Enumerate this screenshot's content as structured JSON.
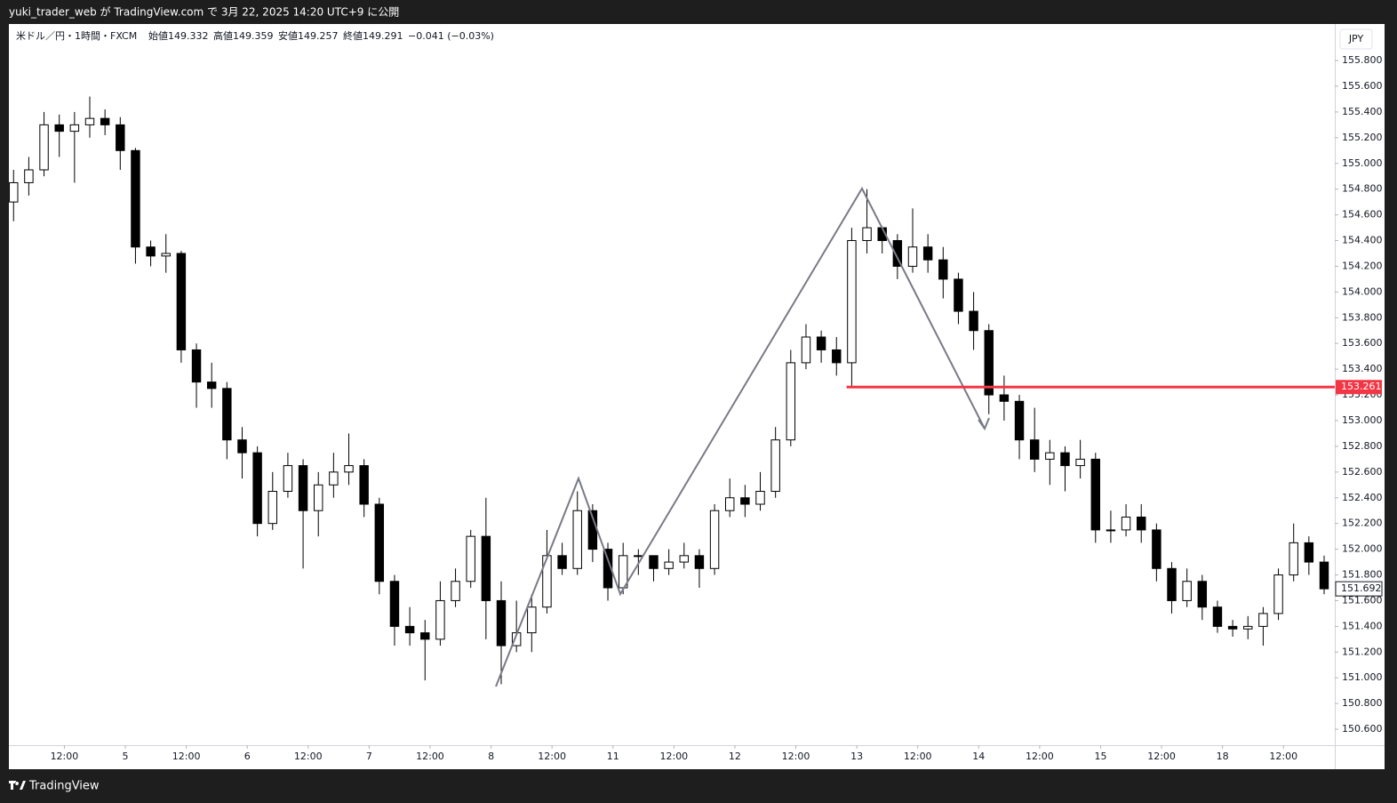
{
  "header": {
    "published": "yuki_trader_web が TradingView.com で 3月 22, 2025 14:20 UTC+9 に公開",
    "brand": "TradingView"
  },
  "chart_data": {
    "type": "candlestick",
    "legend": {
      "symbol": "米ドル／円・1時間・FXCM",
      "open": "始値149.332",
      "high": "高値149.359",
      "low": "安値149.257",
      "close": "終値149.291",
      "change": "−0.041 (−0.03%)"
    },
    "currency": "JPY",
    "x": [
      2,
      5,
      8,
      11,
      14,
      17,
      20,
      23,
      26,
      29,
      32,
      35,
      38,
      41,
      44,
      47,
      50,
      53,
      56,
      59,
      62,
      65,
      68,
      71,
      74,
      77,
      80,
      83,
      86,
      89,
      92,
      95,
      98,
      101,
      104,
      107,
      110,
      113,
      116,
      119,
      122,
      125,
      128,
      131,
      134,
      137,
      140,
      143,
      146,
      149,
      152,
      155,
      158,
      161,
      164,
      167,
      170,
      173,
      176,
      179,
      182,
      185,
      188,
      191,
      194,
      197,
      200,
      203,
      206,
      209,
      212,
      215,
      218,
      221,
      224,
      227,
      230,
      233,
      236,
      239,
      242,
      245,
      248,
      251,
      254,
      257,
      260
    ],
    "open": [
      154.7,
      154.85,
      154.95,
      155.3,
      155.25,
      155.3,
      155.35,
      155.3,
      155.1,
      154.35,
      154.28,
      154.3,
      153.55,
      153.3,
      153.25,
      152.85,
      152.75,
      152.2,
      152.45,
      152.65,
      152.3,
      152.5,
      152.6,
      152.65,
      152.35,
      151.75,
      151.4,
      151.35,
      151.3,
      151.6,
      151.75,
      152.1,
      151.6,
      151.25,
      151.35,
      151.55,
      151.95,
      151.85,
      152.3,
      152.0,
      151.7,
      151.95,
      151.95,
      151.85,
      151.9,
      151.95,
      151.85,
      152.3,
      152.4,
      152.35,
      152.45,
      152.85,
      153.45,
      153.65,
      153.55,
      153.45,
      154.4,
      154.5,
      154.4,
      154.2,
      154.35,
      154.25,
      154.1,
      153.85,
      153.7,
      153.2,
      153.15,
      152.85,
      152.7,
      152.75,
      152.65,
      152.7,
      152.15,
      152.15,
      152.25,
      152.15,
      151.85,
      151.6,
      151.75,
      151.55,
      151.4,
      151.38,
      151.4,
      151.5,
      151.8,
      152.05,
      151.9
    ],
    "high": [
      154.95,
      155.05,
      155.4,
      155.38,
      155.4,
      155.52,
      155.42,
      155.36,
      155.12,
      154.4,
      154.45,
      154.32,
      153.6,
      153.45,
      153.3,
      152.95,
      152.8,
      152.6,
      152.75,
      152.7,
      152.6,
      152.75,
      152.9,
      152.7,
      152.4,
      151.8,
      151.55,
      151.45,
      151.75,
      151.85,
      152.15,
      152.4,
      151.75,
      151.6,
      151.65,
      152.15,
      152.05,
      152.45,
      152.35,
      152.05,
      152.05,
      152.0,
      151.95,
      152.0,
      152.05,
      152.0,
      152.35,
      152.55,
      152.5,
      152.6,
      152.95,
      153.55,
      153.75,
      153.7,
      153.65,
      154.5,
      154.8,
      154.5,
      154.45,
      154.65,
      154.45,
      154.35,
      154.15,
      154.0,
      153.75,
      153.35,
      153.2,
      153.1,
      152.85,
      152.8,
      152.85,
      152.75,
      152.3,
      152.35,
      152.35,
      152.2,
      151.9,
      151.85,
      151.8,
      151.6,
      151.45,
      151.48,
      151.55,
      151.85,
      152.2,
      152.1,
      151.95
    ],
    "low": [
      154.55,
      154.75,
      154.9,
      155.05,
      154.85,
      155.2,
      155.22,
      154.95,
      154.22,
      154.2,
      154.15,
      153.45,
      153.1,
      153.1,
      152.7,
      152.55,
      152.1,
      152.15,
      152.4,
      151.85,
      152.1,
      152.4,
      152.5,
      152.25,
      151.65,
      151.25,
      151.25,
      150.98,
      151.25,
      151.55,
      151.7,
      151.3,
      150.95,
      151.2,
      151.2,
      151.5,
      151.8,
      151.8,
      151.9,
      151.6,
      151.65,
      151.8,
      151.75,
      151.8,
      151.85,
      151.7,
      151.8,
      152.25,
      152.25,
      152.3,
      152.4,
      152.8,
      153.4,
      153.45,
      153.35,
      153.26,
      154.3,
      154.3,
      154.1,
      154.15,
      154.15,
      153.95,
      153.75,
      153.55,
      153.05,
      153.0,
      152.7,
      152.6,
      152.5,
      152.45,
      152.55,
      152.05,
      152.05,
      152.1,
      152.05,
      151.75,
      151.5,
      151.55,
      151.45,
      151.35,
      151.32,
      151.3,
      151.25,
      151.45,
      151.75,
      151.8,
      151.65
    ],
    "close": [
      154.85,
      154.95,
      155.3,
      155.25,
      155.3,
      155.35,
      155.3,
      155.1,
      154.35,
      154.28,
      154.3,
      153.55,
      153.3,
      153.25,
      152.85,
      152.75,
      152.2,
      152.45,
      152.65,
      152.3,
      152.5,
      152.6,
      152.65,
      152.35,
      151.75,
      151.4,
      151.35,
      151.3,
      151.6,
      151.75,
      152.1,
      151.6,
      151.25,
      151.35,
      151.55,
      151.95,
      151.85,
      152.3,
      152.0,
      151.7,
      151.95,
      151.95,
      151.85,
      151.9,
      151.95,
      151.85,
      152.3,
      152.4,
      152.35,
      152.45,
      152.85,
      153.45,
      153.65,
      153.55,
      153.45,
      154.4,
      154.5,
      154.4,
      154.2,
      154.35,
      154.25,
      154.1,
      153.85,
      153.7,
      153.2,
      153.15,
      152.85,
      152.7,
      152.75,
      152.65,
      152.7,
      152.15,
      152.15,
      152.25,
      152.15,
      151.85,
      151.6,
      151.75,
      151.55,
      151.4,
      151.38,
      151.4,
      151.5,
      151.8,
      152.05,
      151.9,
      151.692
    ],
    "up_color": "#ffffff",
    "down_color": "#000000",
    "wick_color": "#000000",
    "hline": {
      "value": 153.261,
      "color": "#f23645",
      "start_x": 166
    },
    "last_price": 151.692,
    "xlim": [
      1.08,
      262.1
    ],
    "ylim": [
      150.476,
      156.084
    ],
    "xticks": [
      {
        "value": 12,
        "label": "12:00"
      },
      {
        "value": 24,
        "label": "5"
      },
      {
        "value": 36,
        "label": "12:00"
      },
      {
        "value": 48,
        "label": "6"
      },
      {
        "value": 60,
        "label": "12:00"
      },
      {
        "value": 72,
        "label": "7"
      },
      {
        "value": 84,
        "label": "12:00"
      },
      {
        "value": 96,
        "label": "8"
      },
      {
        "value": 108,
        "label": "12:00"
      },
      {
        "value": 120,
        "label": "11"
      },
      {
        "value": 132,
        "label": "12:00"
      },
      {
        "value": 144,
        "label": "12"
      },
      {
        "value": 156,
        "label": "12:00"
      },
      {
        "value": 168,
        "label": "13"
      },
      {
        "value": 180,
        "label": "12:00"
      },
      {
        "value": 192,
        "label": "14"
      },
      {
        "value": 204,
        "label": "12:00"
      },
      {
        "value": 216,
        "label": "15"
      },
      {
        "value": 228,
        "label": "12:00"
      },
      {
        "value": 240,
        "label": "18"
      },
      {
        "value": 252,
        "label": "12:00"
      }
    ],
    "yticks": [
      {
        "value": 150.6,
        "label": "150.600"
      },
      {
        "value": 150.8,
        "label": "150.800"
      },
      {
        "value": 151.0,
        "label": "151.000"
      },
      {
        "value": 151.2,
        "label": "151.200"
      },
      {
        "value": 151.4,
        "label": "151.400"
      },
      {
        "value": 151.6,
        "label": "151.600"
      },
      {
        "value": 151.8,
        "label": "151.800"
      },
      {
        "value": 152.0,
        "label": "152.000"
      },
      {
        "value": 152.2,
        "label": "152.200"
      },
      {
        "value": 152.4,
        "label": "152.400"
      },
      {
        "value": 152.6,
        "label": "152.600"
      },
      {
        "value": 152.8,
        "label": "152.800"
      },
      {
        "value": 153.0,
        "label": "153.000"
      },
      {
        "value": 153.2,
        "label": "153.200"
      },
      {
        "value": 153.4,
        "label": "153.400"
      },
      {
        "value": 153.6,
        "label": "153.600"
      },
      {
        "value": 153.8,
        "label": "153.800"
      },
      {
        "value": 154.0,
        "label": "154.000"
      },
      {
        "value": 154.2,
        "label": "154.200"
      },
      {
        "value": 154.4,
        "label": "154.400"
      },
      {
        "value": 154.6,
        "label": "154.600"
      },
      {
        "value": 154.8,
        "label": "154.800"
      },
      {
        "value": 155.0,
        "label": "155.000"
      },
      {
        "value": 155.2,
        "label": "155.200"
      },
      {
        "value": 155.4,
        "label": "155.400"
      },
      {
        "value": 155.6,
        "label": "155.600"
      },
      {
        "value": 155.8,
        "label": "155.800"
      }
    ],
    "grid": false
  }
}
